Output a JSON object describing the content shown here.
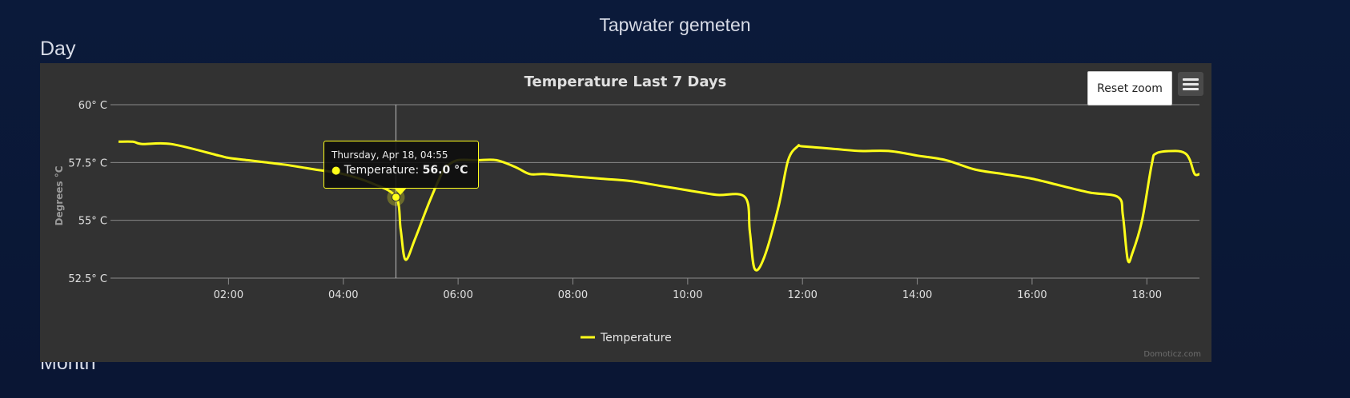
{
  "page": {
    "title": "Tapwater gemeten",
    "section_day": "Day",
    "section_month": "Month"
  },
  "toolbar": {
    "reset_zoom_label": "Reset zoom",
    "menu_icon": "hamburger-menu-icon"
  },
  "tooltip": {
    "date": "Thursday, Apr 18, 04:55",
    "series_label": "Temperature:",
    "value": "56.0 °C"
  },
  "colors": {
    "series": "#ffff1a",
    "panel": "#323232",
    "grid": "#8a8a8a"
  },
  "credit": "Domoticz.com",
  "chart_data": {
    "type": "line",
    "title": "Temperature Last 7 Days",
    "ylabel": "Degrees °C",
    "xlabel": "",
    "xlim": [
      "00:05",
      "18:55"
    ],
    "ylim": [
      52.5,
      60
    ],
    "x_ticks": [
      "02:00",
      "04:00",
      "06:00",
      "08:00",
      "10:00",
      "12:00",
      "14:00",
      "16:00",
      "18:00"
    ],
    "y_ticks": [
      "52.5° C",
      "55° C",
      "57.5° C",
      "60° C"
    ],
    "y_tick_values": [
      52.5,
      55,
      57.5,
      60
    ],
    "grid": true,
    "legend": "bottom-center",
    "highlight": {
      "x": "04:55",
      "y": 56.0
    },
    "series": [
      {
        "name": "Temperature",
        "x": [
          "00:05",
          "00:20",
          "00:30",
          "01:00",
          "01:50",
          "02:00",
          "02:20",
          "02:40",
          "03:00",
          "03:30",
          "04:00",
          "04:30",
          "04:55",
          "05:00",
          "05:05",
          "05:15",
          "05:30",
          "05:45",
          "05:50",
          "06:00",
          "06:20",
          "06:40",
          "07:00",
          "07:15",
          "07:30",
          "08:00",
          "08:30",
          "09:00",
          "09:30",
          "10:00",
          "10:30",
          "11:00",
          "11:05",
          "11:10",
          "11:20",
          "11:35",
          "11:45",
          "11:55",
          "12:00",
          "12:30",
          "13:00",
          "13:30",
          "14:00",
          "14:30",
          "15:00",
          "15:30",
          "16:00",
          "16:30",
          "17:00",
          "17:30",
          "17:35",
          "17:40",
          "17:45",
          "17:55",
          "18:05",
          "18:10",
          "18:30",
          "18:40",
          "18:45",
          "18:50",
          "18:55"
        ],
        "y": [
          58.4,
          58.4,
          58.3,
          58.3,
          57.8,
          57.7,
          57.6,
          57.5,
          57.4,
          57.2,
          57.0,
          56.6,
          56.0,
          54.6,
          53.3,
          54.2,
          55.8,
          57.2,
          57.4,
          57.6,
          57.6,
          57.6,
          57.3,
          57.0,
          57.0,
          56.9,
          56.8,
          56.7,
          56.5,
          56.3,
          56.1,
          56.0,
          54.5,
          52.9,
          53.4,
          55.6,
          57.6,
          58.2,
          58.2,
          58.1,
          58.0,
          58.0,
          57.8,
          57.6,
          57.2,
          57.0,
          56.8,
          56.5,
          56.2,
          56.0,
          55.2,
          53.3,
          53.6,
          55.0,
          57.4,
          57.9,
          58.0,
          57.9,
          57.6,
          57.0,
          57.0
        ]
      }
    ]
  }
}
